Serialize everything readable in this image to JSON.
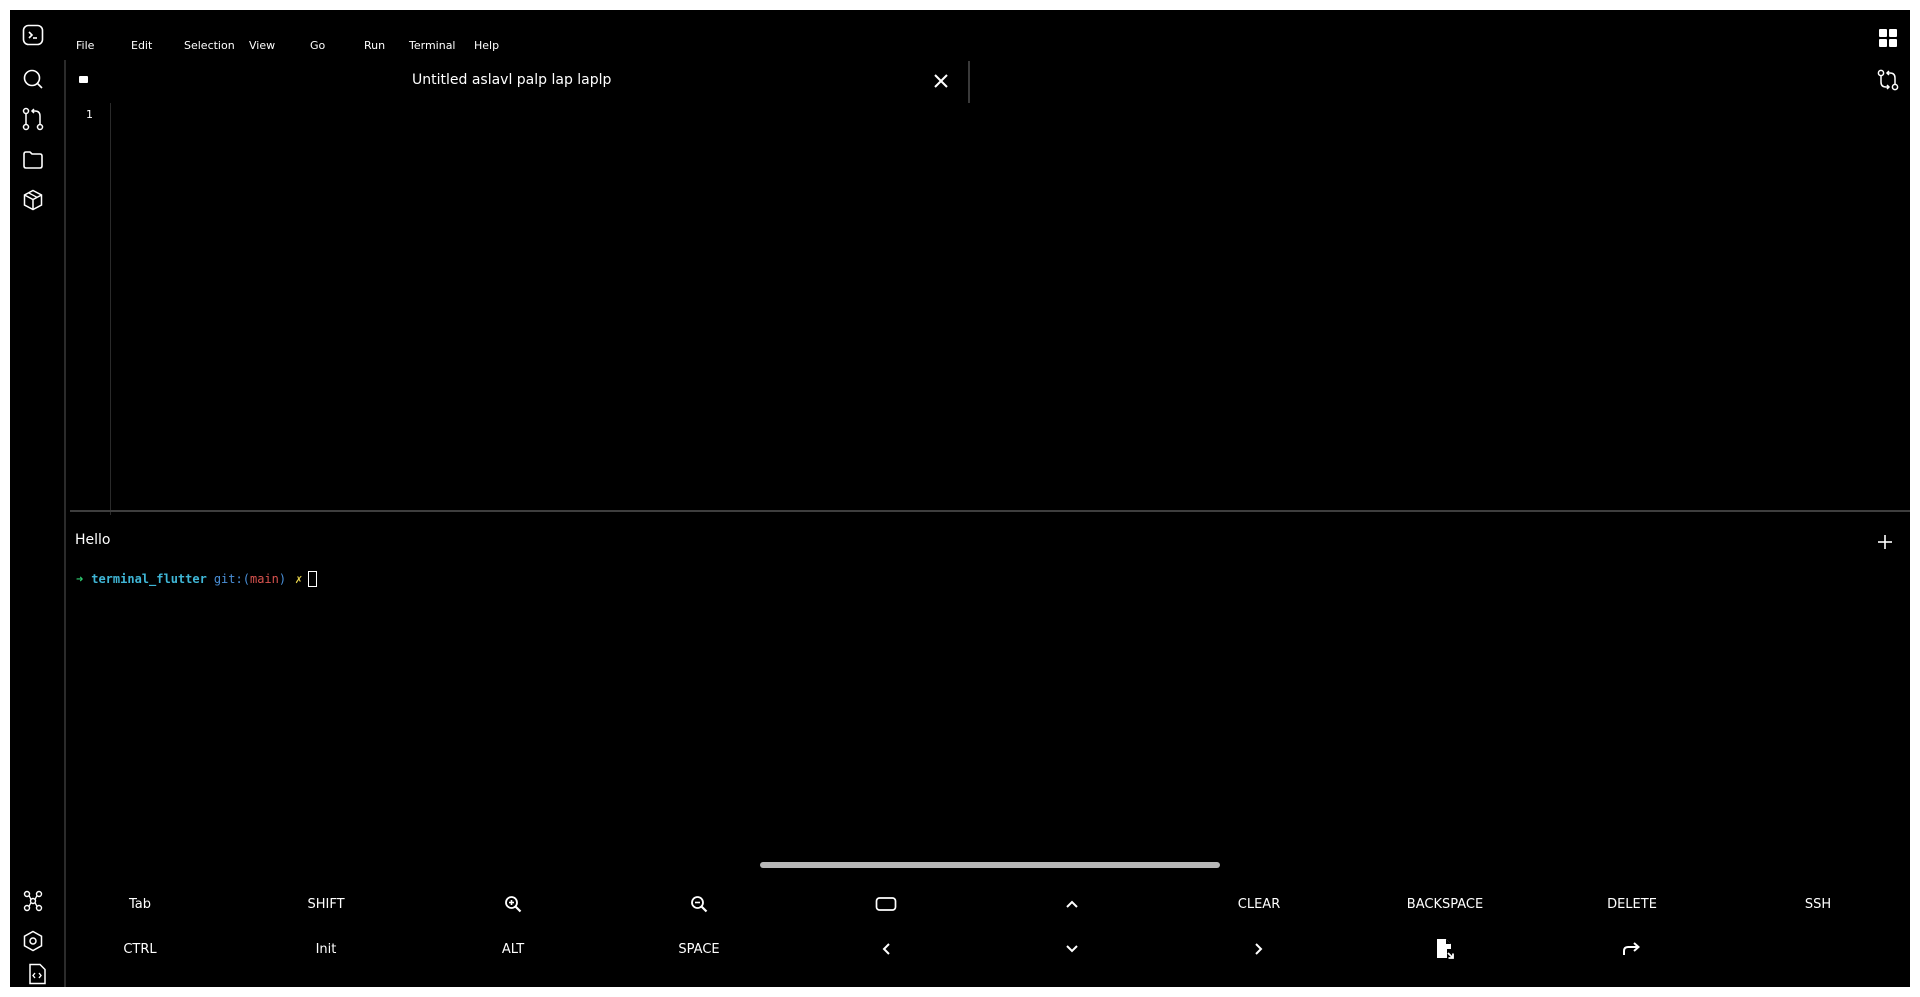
{
  "menu": [
    "File",
    "Edit",
    "Selection",
    "View",
    "Go",
    "Run",
    "Terminal",
    "Help"
  ],
  "tab": {
    "title": "Untitled aslavl palp lap laplp"
  },
  "editor": {
    "line_numbers": [
      "1"
    ]
  },
  "terminal": {
    "title": "Hello",
    "prompt": {
      "arrow": "➜",
      "directory": "terminal_flutter",
      "git_label": "git:",
      "open_paren": "(",
      "branch": "main",
      "close_paren": ")",
      "dirty_mark": "✗"
    }
  },
  "keys": {
    "row1": [
      "Tab",
      "SHIFT",
      "",
      "",
      "",
      "",
      "CLEAR",
      "BACKSPACE",
      "DELETE",
      "SSH"
    ],
    "row2": [
      "CTRL",
      "Init",
      "ALT",
      "SPACE",
      "",
      "",
      "",
      "",
      ""
    ]
  },
  "icons": {
    "activity_top": [
      "terminal-icon",
      "search-icon",
      "source-control-icon",
      "folder-icon",
      "package-icon"
    ],
    "activity_bottom": [
      "graph-icon",
      "settings-icon",
      "code-file-icon"
    ],
    "top_right": [
      "grid-icon",
      "git-compare-icon"
    ],
    "keyboard": [
      "zoom-in-icon",
      "zoom-out-icon",
      "keyboard-icon",
      "arrow-up-icon",
      "arrow-left-icon",
      "arrow-down-icon",
      "arrow-right-icon",
      "export-file-icon",
      "redo-icon"
    ]
  },
  "colors": {
    "background": "#000000",
    "prompt_arrow": "#2ecc71",
    "prompt_directory": "#3fb6d6",
    "prompt_git": "#4a90d9",
    "prompt_branch": "#d9534f",
    "prompt_dirty": "#e8d44d"
  }
}
